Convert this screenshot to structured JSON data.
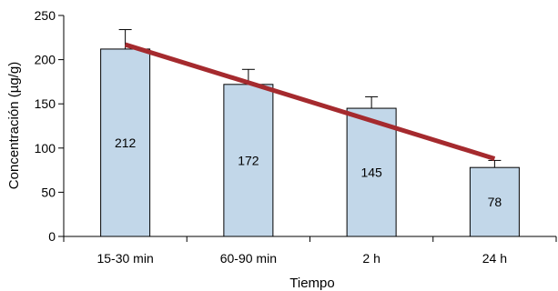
{
  "chart_data": {
    "type": "bar",
    "categories": [
      "15-30 min",
      "60-90 min",
      "2 h",
      "24 h"
    ],
    "values": [
      212,
      172,
      145,
      78
    ],
    "error_upper": [
      234,
      189,
      158,
      86
    ],
    "data_labels": [
      "212",
      "172",
      "145",
      "78"
    ],
    "trend_line": {
      "start": 217,
      "end": 88
    },
    "xlabel": "Tiempo",
    "ylabel": "Concentración (µg/g)",
    "ylim": [
      0,
      250
    ],
    "yticks": [
      0,
      50,
      100,
      150,
      200,
      250
    ],
    "grid": false,
    "legend": "none",
    "colors": {
      "bar": "#c2d7e9",
      "bar_stroke": "#000000",
      "trend": "#a52a2e",
      "axis": "#000000"
    }
  }
}
